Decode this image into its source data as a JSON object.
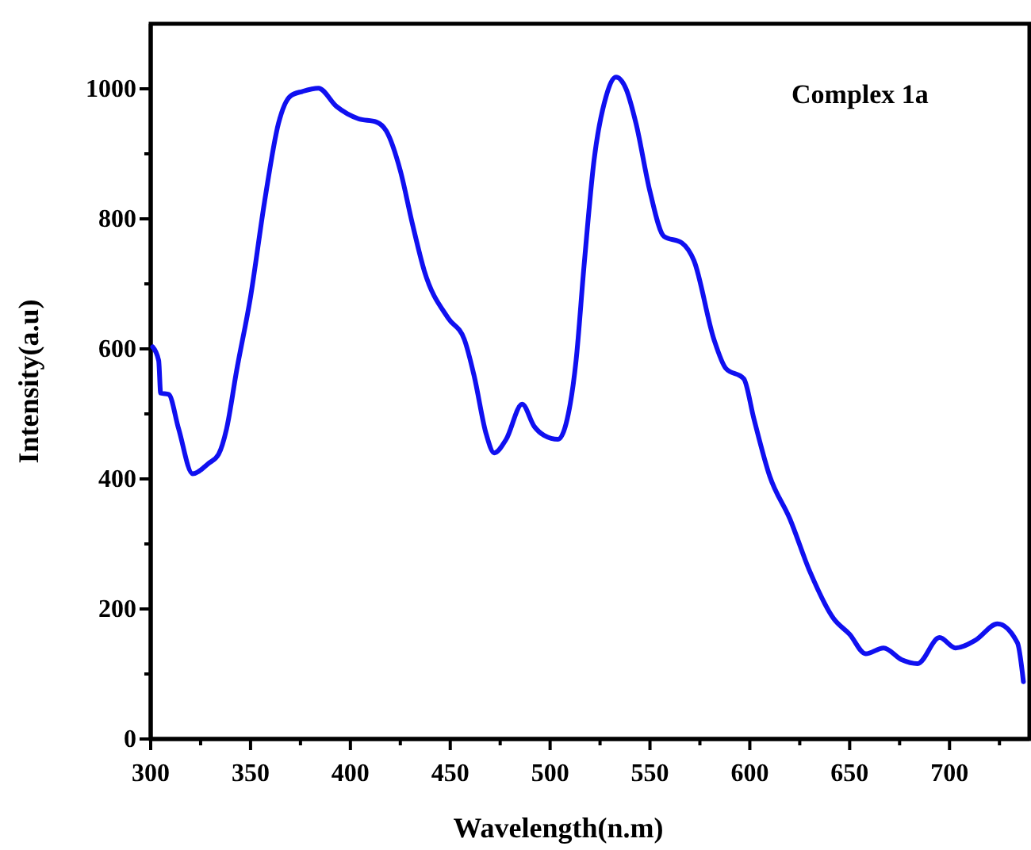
{
  "chart_data": {
    "type": "line",
    "xlabel": "Wavelength(n.m)",
    "ylabel": "Intensity(a.u)",
    "annotations": [
      "Complex 1a"
    ],
    "xlim": [
      300,
      740
    ],
    "ylim": [
      0,
      1100
    ],
    "xticks": [
      300,
      {
        "value": 325,
        "label": null
      },
      350,
      {
        "value": 375,
        "label": null
      },
      400,
      {
        "value": 425,
        "label": null
      },
      450,
      {
        "value": 475,
        "label": null
      },
      500,
      {
        "value": 525,
        "label": null
      },
      550,
      {
        "value": 575,
        "label": null
      },
      600,
      {
        "value": 625,
        "label": null
      },
      650,
      {
        "value": 675,
        "label": null
      },
      700,
      {
        "value": 725,
        "label": null
      }
    ],
    "yticks": [
      0,
      {
        "value": 100,
        "label": null
      },
      200,
      {
        "value": 300,
        "label": null
      },
      400,
      {
        "value": 500,
        "label": null
      },
      600,
      {
        "value": 700,
        "label": null
      },
      800,
      {
        "value": 900,
        "label": null
      },
      1000
    ],
    "grid": false,
    "series": [
      {
        "color": "#1010f0",
        "x": [
          301,
          304,
          305,
          309,
          314,
          321,
          329,
          334,
          338,
          343,
          350,
          357,
          364,
          370,
          376,
          384,
          393,
          404,
          413,
          418,
          425,
          431,
          437,
          449,
          457,
          462,
          468,
          472,
          478,
          486,
          492,
          497,
          504,
          508,
          513,
          517,
          522,
          528,
          533,
          538,
          543,
          550,
          557,
          566,
          572,
          582,
          588,
          597,
          602,
          610,
          620,
          630,
          642,
          650,
          658,
          667,
          676,
          684,
          695,
          703,
          713,
          724,
          734,
          737
        ],
        "values": [
          603,
          582,
          532,
          530,
          477,
          408,
          424,
          438,
          477,
          566,
          680,
          826,
          947,
          989,
          996,
          1001,
          973,
          954,
          949,
          935,
          874,
          793,
          720,
          647,
          615,
          558,
          469,
          440,
          461,
          515,
          481,
          467,
          461,
          485,
          582,
          728,
          890,
          988,
          1018,
          1000,
          947,
          842,
          773,
          763,
          736,
          615,
          570,
          554,
          493,
          404,
          339,
          258,
          185,
          161,
          131,
          140,
          122,
          116,
          156,
          140,
          152,
          177,
          148,
          88
        ]
      }
    ]
  }
}
